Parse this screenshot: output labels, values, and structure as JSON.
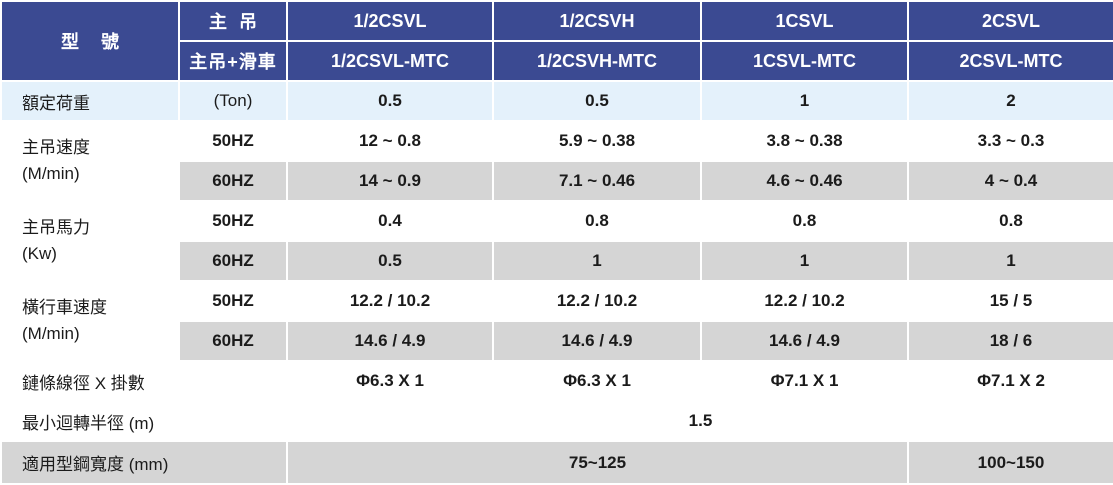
{
  "header": {
    "model_label": "型號",
    "hoist_label": "主吊",
    "hoist_trolley_label": "主吊+滑車",
    "models": [
      "1/2CSVL",
      "1/2CSVH",
      "1CSVL",
      "2CSVL"
    ],
    "models_mtc": [
      "1/2CSVL-MTC",
      "1/2CSVH-MTC",
      "1CSVL-MTC",
      "2CSVL-MTC"
    ]
  },
  "rated_load": {
    "label": "額定荷重",
    "unit": "(Ton)",
    "values": [
      "0.5",
      "0.5",
      "1",
      "2"
    ]
  },
  "hoist_speed": {
    "label": "主吊速度",
    "unit": "(M/min)",
    "hz50": "50HZ",
    "hz60": "60HZ",
    "values_50": [
      "12 ~ 0.8",
      "5.9 ~  0.38",
      "3.8 ~  0.38",
      "3.3 ~ 0.3"
    ],
    "values_60": [
      "14 ~ 0.9",
      "7.1 ~ 0.46",
      "4.6 ~ 0.46",
      "4 ~ 0.4"
    ]
  },
  "hoist_power": {
    "label": "主吊馬力",
    "unit": "(Kw)",
    "hz50": "50HZ",
    "hz60": "60HZ",
    "values_50": [
      "0.4",
      "0.8",
      "0.8",
      "0.8"
    ],
    "values_60": [
      "0.5",
      "1",
      "1",
      "1"
    ]
  },
  "traverse_speed": {
    "label": "橫行車速度",
    "unit": "(M/min)",
    "hz50": "50HZ",
    "hz60": "60HZ",
    "values_50": [
      "12.2 / 10.2",
      "12.2 / 10.2",
      "12.2 / 10.2",
      "15 / 5"
    ],
    "values_60": [
      "14.6 / 4.9",
      "14.6 / 4.9",
      "14.6 / 4.9",
      "18 / 6"
    ]
  },
  "chain": {
    "label": "鏈條線徑 X 掛數",
    "values": [
      "Φ6.3 X 1",
      "Φ6.3 X 1",
      "Φ7.1 X 1",
      "Φ7.1 X 2"
    ]
  },
  "min_radius": {
    "label": "最小迴轉半徑 (m)",
    "value": "1.5"
  },
  "beam_width": {
    "label": "適用型鋼寬度 (mm)",
    "value_a": "75~125",
    "value_b": "100~150"
  }
}
